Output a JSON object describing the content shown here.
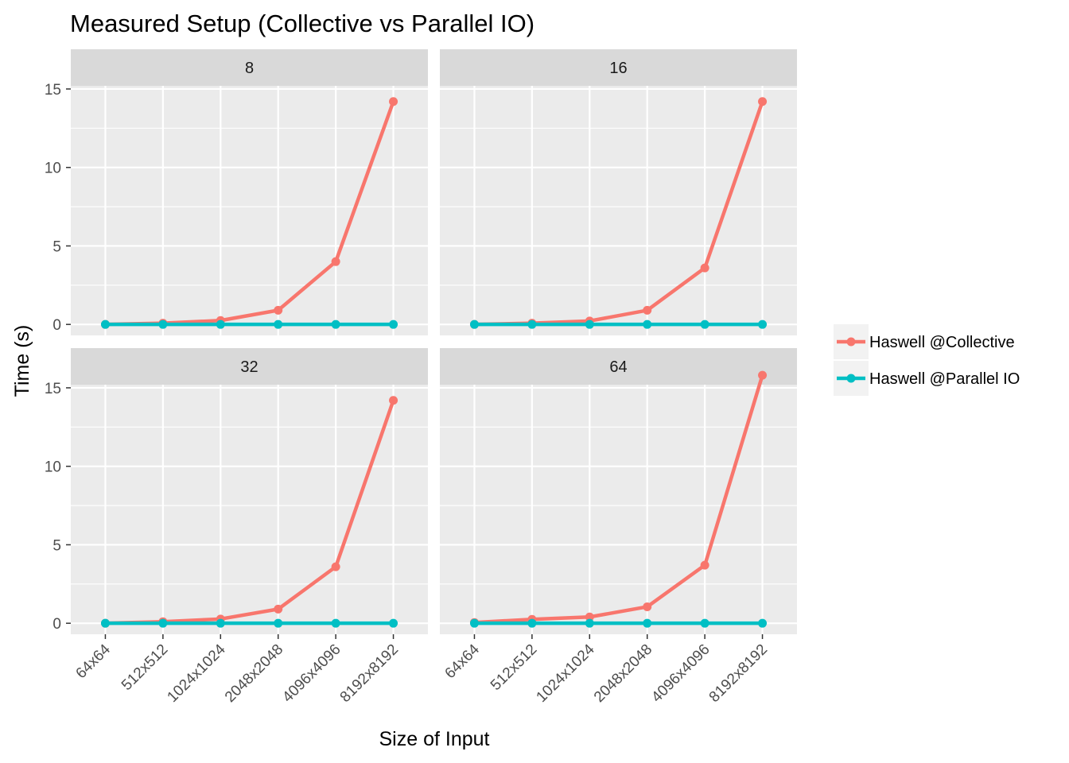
{
  "chart_data": {
    "type": "line",
    "title": "Measured Setup (Collective vs Parallel IO)",
    "xlabel": "Size of Input",
    "ylabel": "Time (s)",
    "categories": [
      "64x64",
      "512x512",
      "1024x1024",
      "2048x2048",
      "4096x4096",
      "8192x8192"
    ],
    "ylim": [
      -0.7,
      15.2
    ],
    "yticks": [
      0,
      5,
      10,
      15
    ],
    "grid": true,
    "legend_position": "right",
    "legend": [
      {
        "name": "Haswell @Collective",
        "color": "#F8766D"
      },
      {
        "name": "Haswell @Parallel IO",
        "color": "#00BFC4"
      }
    ],
    "colors": {
      "panel_bg": "#EBEBEB",
      "strip_bg": "#D9D9D9",
      "grid": "#FFFFFF"
    },
    "panels": [
      {
        "label": "8",
        "series": [
          {
            "name": "Haswell @Collective",
            "values": [
              0.0,
              0.08,
              0.25,
              0.9,
              4.0,
              14.2
            ]
          },
          {
            "name": "Haswell @Parallel IO",
            "values": [
              0.0,
              0.0,
              0.0,
              0.0,
              0.0,
              0.0
            ]
          }
        ]
      },
      {
        "label": "16",
        "series": [
          {
            "name": "Haswell @Collective",
            "values": [
              0.0,
              0.08,
              0.22,
              0.9,
              3.6,
              14.2
            ]
          },
          {
            "name": "Haswell @Parallel IO",
            "values": [
              0.0,
              0.0,
              0.0,
              0.0,
              0.0,
              0.0
            ]
          }
        ]
      },
      {
        "label": "32",
        "series": [
          {
            "name": "Haswell @Collective",
            "values": [
              0.0,
              0.1,
              0.27,
              0.9,
              3.6,
              14.2
            ]
          },
          {
            "name": "Haswell @Parallel IO",
            "values": [
              0.0,
              0.0,
              0.0,
              0.0,
              0.0,
              0.0
            ]
          }
        ]
      },
      {
        "label": "64",
        "series": [
          {
            "name": "Haswell @Collective",
            "values": [
              0.05,
              0.25,
              0.4,
              1.05,
              3.7,
              15.8
            ]
          },
          {
            "name": "Haswell @Parallel IO",
            "values": [
              0.0,
              0.0,
              0.0,
              0.0,
              0.0,
              0.0
            ]
          }
        ]
      }
    ]
  }
}
